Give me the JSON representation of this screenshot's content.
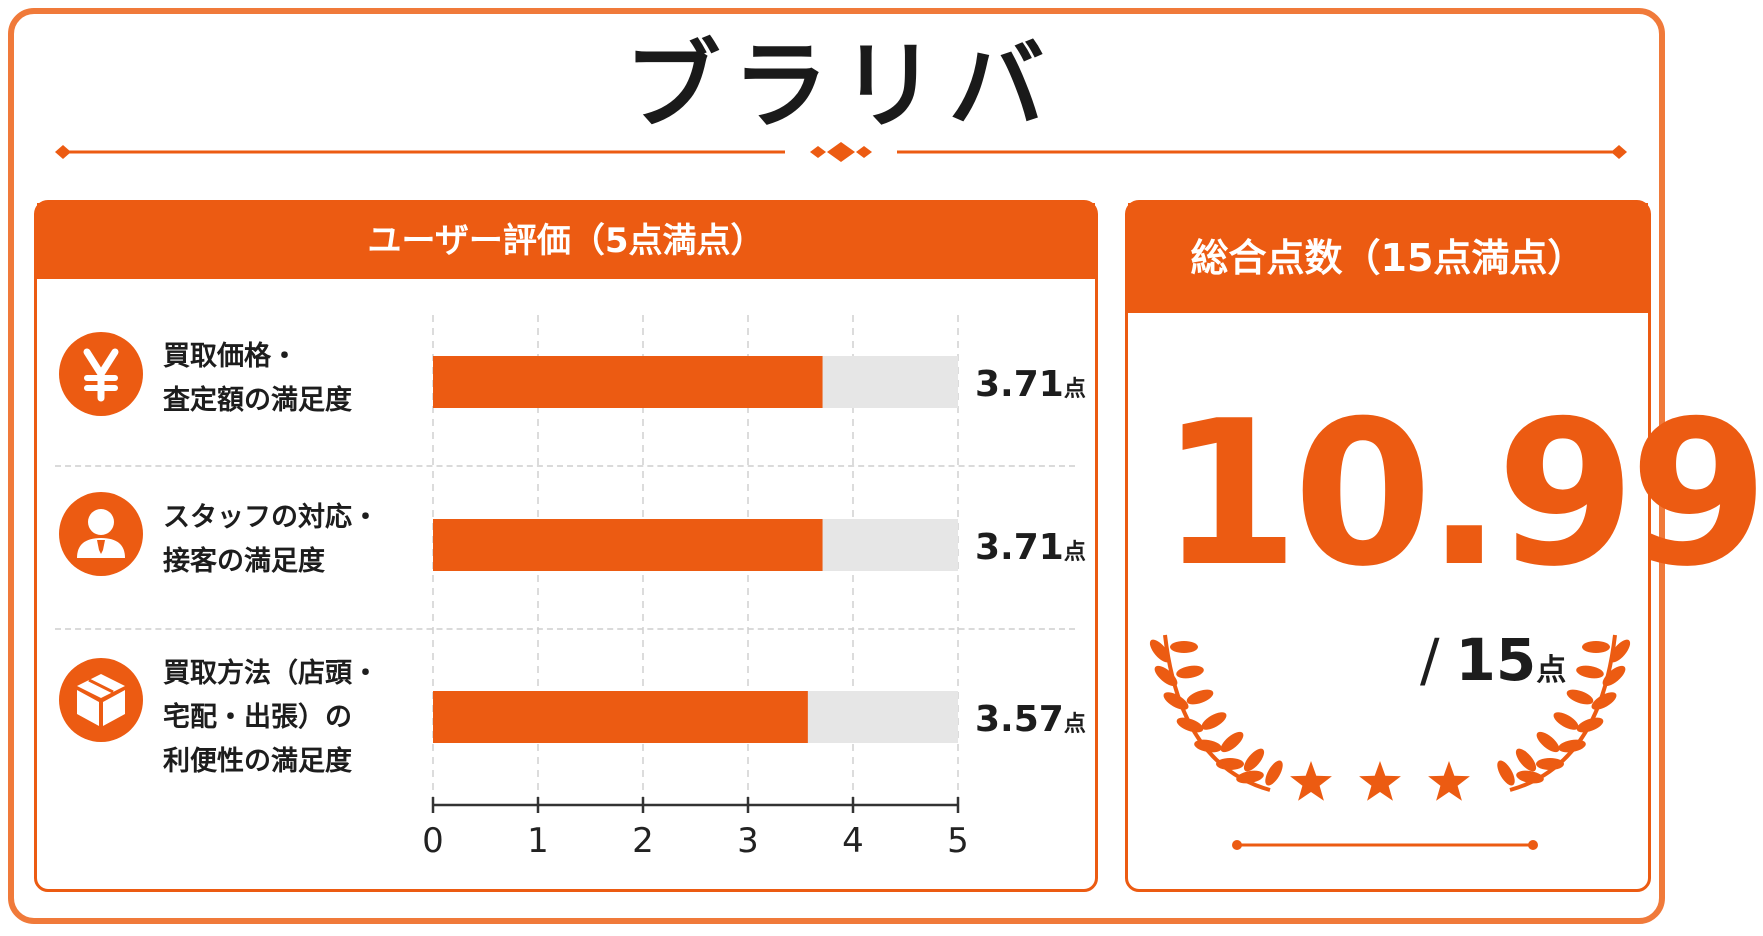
{
  "title": "ブラリバ",
  "left_panel": {
    "header": "ユーザー評価（5点満点）"
  },
  "right_panel": {
    "header": "総合点数（15点満点）",
    "score": "10.99",
    "out_of_slash": "/",
    "out_of_value": "15",
    "out_of_unit": "点",
    "stars": 3
  },
  "colors": {
    "accent": "#ec5b12",
    "border": "#f07a3a",
    "track": "#e6e6e6"
  },
  "icons": [
    "yen-icon",
    "person-icon",
    "package-icon"
  ],
  "chart_data": {
    "type": "bar",
    "orientation": "horizontal",
    "categories": [
      "買取価格・\n査定額の満足度",
      "スタッフの対応・\n接客の満足度",
      "買取方法（店頭・\n宅配・出張）の\n利便性の満足度"
    ],
    "values": [
      3.71,
      3.71,
      3.57
    ],
    "value_labels": [
      "3.71",
      "3.71",
      "3.57"
    ],
    "value_unit": "点",
    "xlim": [
      0,
      5
    ],
    "xticks": [
      "0",
      "1",
      "2",
      "3",
      "4",
      "5"
    ],
    "grid": true
  }
}
